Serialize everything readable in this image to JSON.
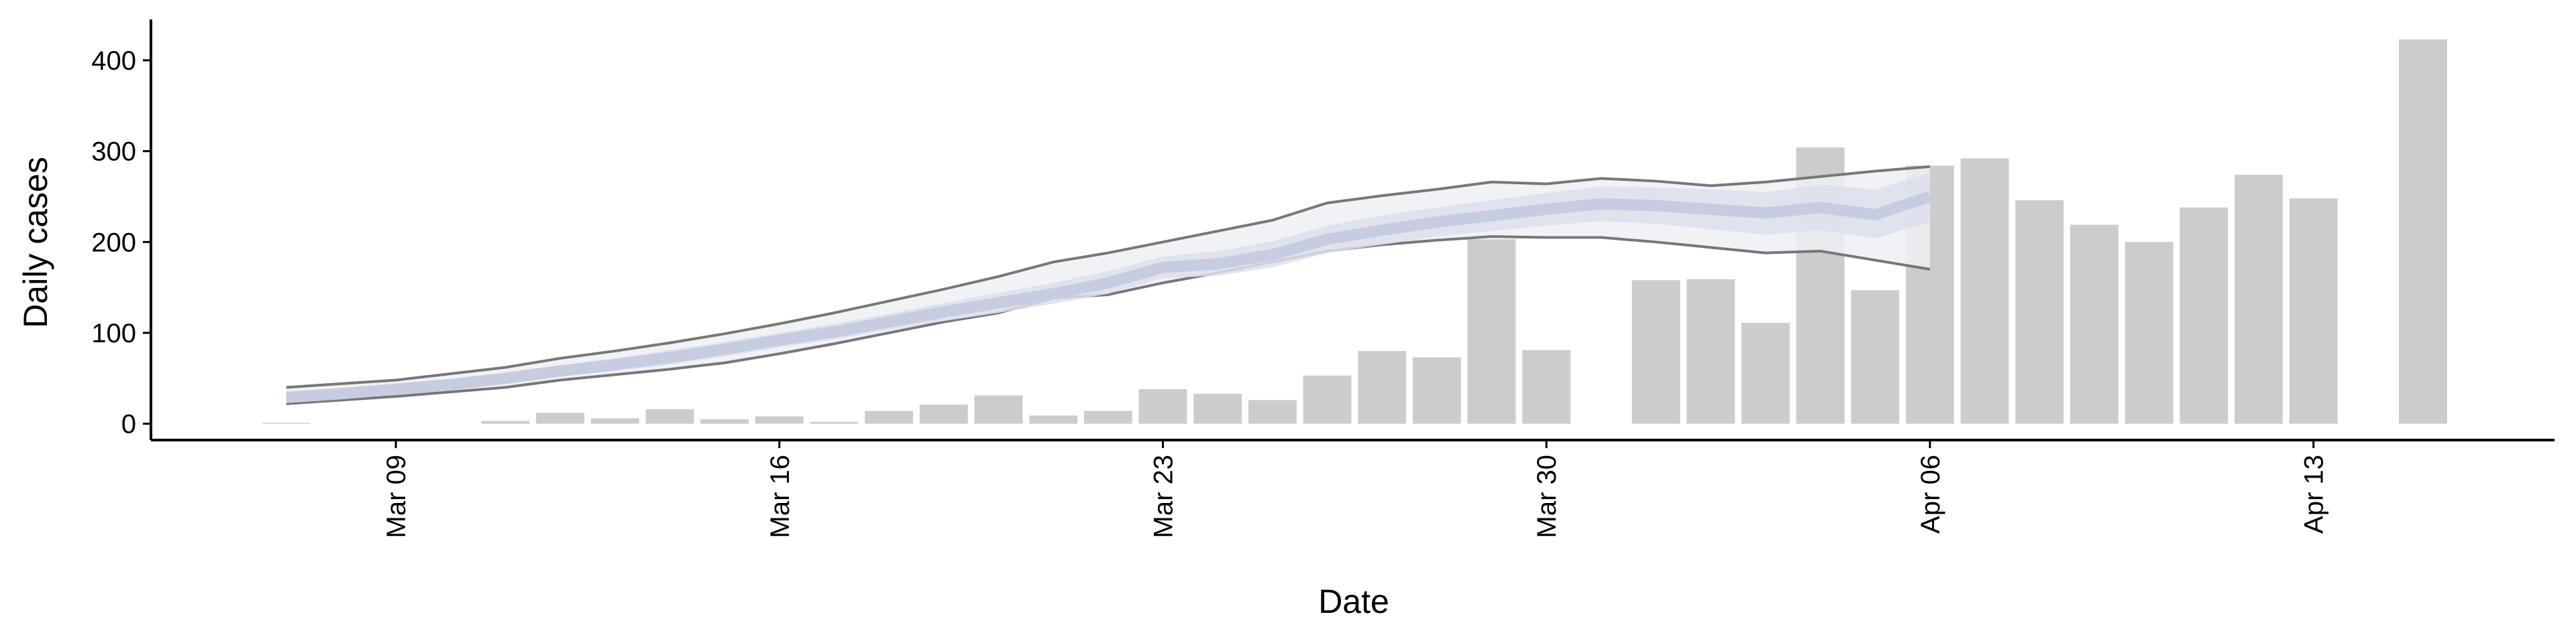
{
  "chart_data": {
    "type": "bar",
    "xlabel": "Date",
    "ylabel": "Daily cases",
    "categories": [
      null,
      null,
      "Mar 09",
      null,
      null,
      null,
      null,
      null,
      null,
      "Mar 16",
      null,
      null,
      null,
      null,
      null,
      null,
      "Mar 23",
      null,
      null,
      null,
      null,
      null,
      null,
      "Mar 30",
      null,
      null,
      null,
      null,
      null,
      null,
      "Apr 06",
      null,
      null,
      null,
      null,
      null,
      null,
      "Apr 13",
      null,
      null
    ],
    "values": [
      1,
      null,
      null,
      null,
      3,
      12,
      6,
      16,
      5,
      8,
      2,
      14,
      21,
      31,
      9,
      14,
      38,
      33,
      26,
      53,
      80,
      73,
      203,
      81,
      null,
      158,
      159,
      111,
      304,
      147,
      284,
      292,
      246,
      219,
      200,
      238,
      274,
      248,
      null,
      423
    ],
    "color": "#cccccc",
    "bands": [
      {
        "fill": "#eef0f5",
        "stroke": "#777777",
        "lower": [
          22,
          26,
          30,
          35,
          40,
          48,
          54,
          60,
          67,
          77,
          88,
          100,
          112,
          122,
          138,
          142,
          155,
          166,
          178,
          190,
          197,
          202,
          206,
          205,
          205,
          200,
          194,
          188,
          190,
          180,
          170,
          null,
          null,
          null,
          null,
          null,
          null,
          null,
          null,
          null
        ],
        "upper": [
          40,
          44,
          48,
          55,
          62,
          72,
          80,
          89,
          99,
          110,
          122,
          135,
          148,
          162,
          178,
          188,
          200,
          212,
          224,
          243,
          251,
          258,
          266,
          264,
          270,
          267,
          262,
          266,
          272,
          278,
          283,
          null,
          null,
          null,
          null,
          null,
          null,
          null,
          null,
          null
        ]
      },
      {
        "fill": "#dde1ec",
        "stroke": "none",
        "lower": [
          25,
          29,
          34,
          38,
          44,
          52,
          58,
          65,
          74,
          84,
          93,
          103,
          113,
          122,
          132,
          143,
          160,
          163,
          172,
          188,
          197,
          206,
          212,
          218,
          223,
          220,
          214,
          208,
          213,
          204,
          222,
          null,
          null,
          null,
          null,
          null,
          null,
          null,
          null,
          null
        ],
        "upper": [
          33,
          37,
          43,
          48,
          56,
          64,
          72,
          81,
          90,
          100,
          110,
          121,
          133,
          144,
          155,
          168,
          184,
          190,
          201,
          218,
          229,
          238,
          246,
          254,
          261,
          260,
          258,
          255,
          263,
          258,
          276,
          null,
          null,
          null,
          null,
          null,
          null,
          null,
          null,
          null
        ]
      }
    ],
    "series": [
      {
        "color": "#c7cde0",
        "values": [
          29,
          33,
          38,
          43,
          50,
          58,
          65,
          73,
          82,
          92,
          101,
          112,
          123,
          133,
          143,
          155,
          172,
          176,
          186,
          203,
          213,
          222,
          229,
          236,
          242,
          240,
          236,
          232,
          238,
          230,
          250,
          null,
          null,
          null,
          null,
          null,
          null,
          null,
          null,
          null
        ]
      }
    ],
    "ylim": [
      -18,
      445
    ],
    "yticks": [
      0,
      100,
      200,
      300,
      400
    ],
    "grid": false
  }
}
